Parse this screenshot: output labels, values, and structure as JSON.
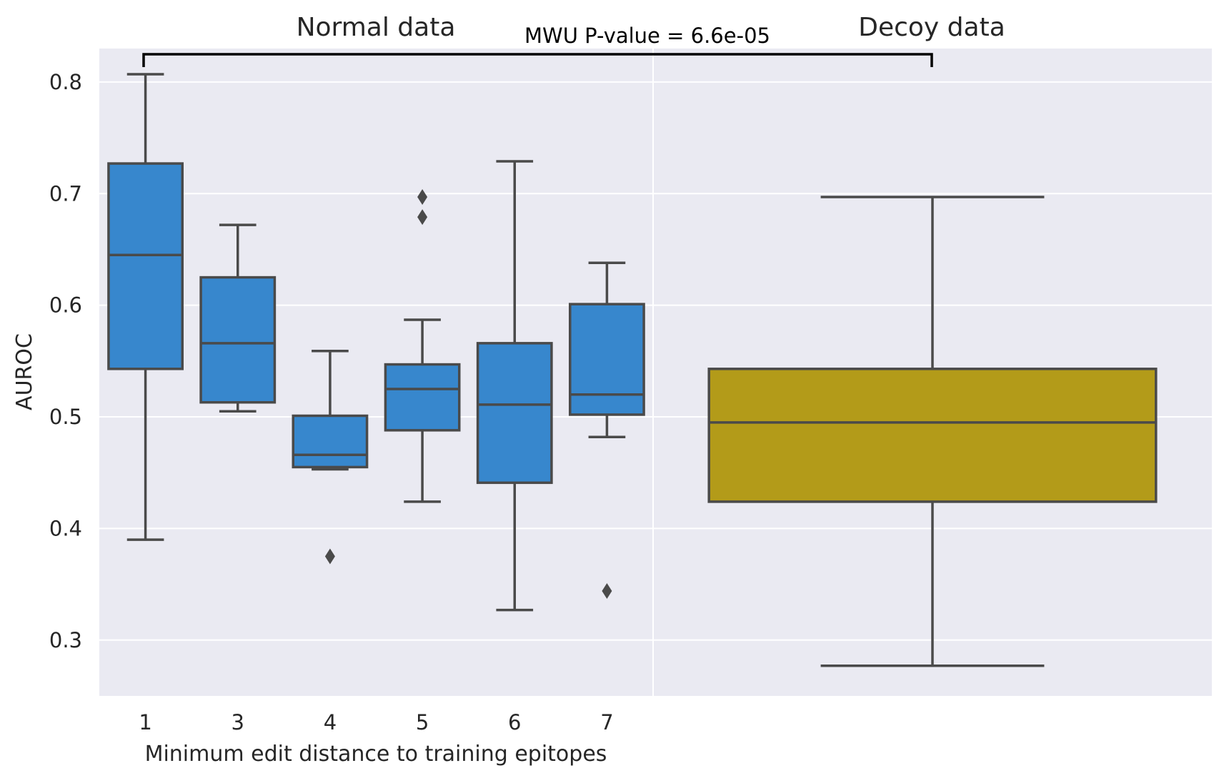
{
  "chart_data": [
    {
      "panel": "left",
      "type": "box",
      "title": "Normal data",
      "xlabel": "Minimum edit distance to training epitopes",
      "ylabel": "AUROC",
      "ylim": [
        0.25,
        0.83
      ],
      "yticks": [
        "0.3",
        "0.4",
        "0.5",
        "0.6",
        "0.7",
        "0.8"
      ],
      "categories": [
        "1",
        "3",
        "4",
        "5",
        "6",
        "7"
      ],
      "color": "#3787cd",
      "grid": true,
      "boxes": [
        {
          "category": "1",
          "whisker_low": 0.39,
          "q1": 0.543,
          "median": 0.645,
          "q3": 0.727,
          "whisker_high": 0.807,
          "outliers": []
        },
        {
          "category": "3",
          "whisker_low": 0.505,
          "q1": 0.513,
          "median": 0.566,
          "q3": 0.625,
          "whisker_high": 0.672,
          "outliers": []
        },
        {
          "category": "4",
          "whisker_low": 0.453,
          "q1": 0.455,
          "median": 0.466,
          "q3": 0.501,
          "whisker_high": 0.559,
          "outliers": [
            0.375
          ]
        },
        {
          "category": "5",
          "whisker_low": 0.424,
          "q1": 0.488,
          "median": 0.525,
          "q3": 0.547,
          "whisker_high": 0.587,
          "outliers": [
            0.697,
            0.679
          ]
        },
        {
          "category": "6",
          "whisker_low": 0.327,
          "q1": 0.441,
          "median": 0.511,
          "q3": 0.566,
          "whisker_high": 0.729,
          "outliers": []
        },
        {
          "category": "7",
          "whisker_low": 0.482,
          "q1": 0.502,
          "median": 0.52,
          "q3": 0.601,
          "whisker_high": 0.638,
          "outliers": [
            0.344
          ]
        }
      ]
    },
    {
      "panel": "right",
      "type": "box",
      "title": "Decoy data",
      "ylim": [
        0.25,
        0.83
      ],
      "color": "#b39b19",
      "grid": true,
      "boxes": [
        {
          "category": "",
          "whisker_low": 0.277,
          "q1": 0.424,
          "median": 0.495,
          "q3": 0.543,
          "whisker_high": 0.697,
          "outliers": []
        }
      ]
    }
  ],
  "annotation": {
    "text": "MWU P-value = 6.6e-05",
    "between": [
      "1",
      "Decoy data"
    ]
  }
}
